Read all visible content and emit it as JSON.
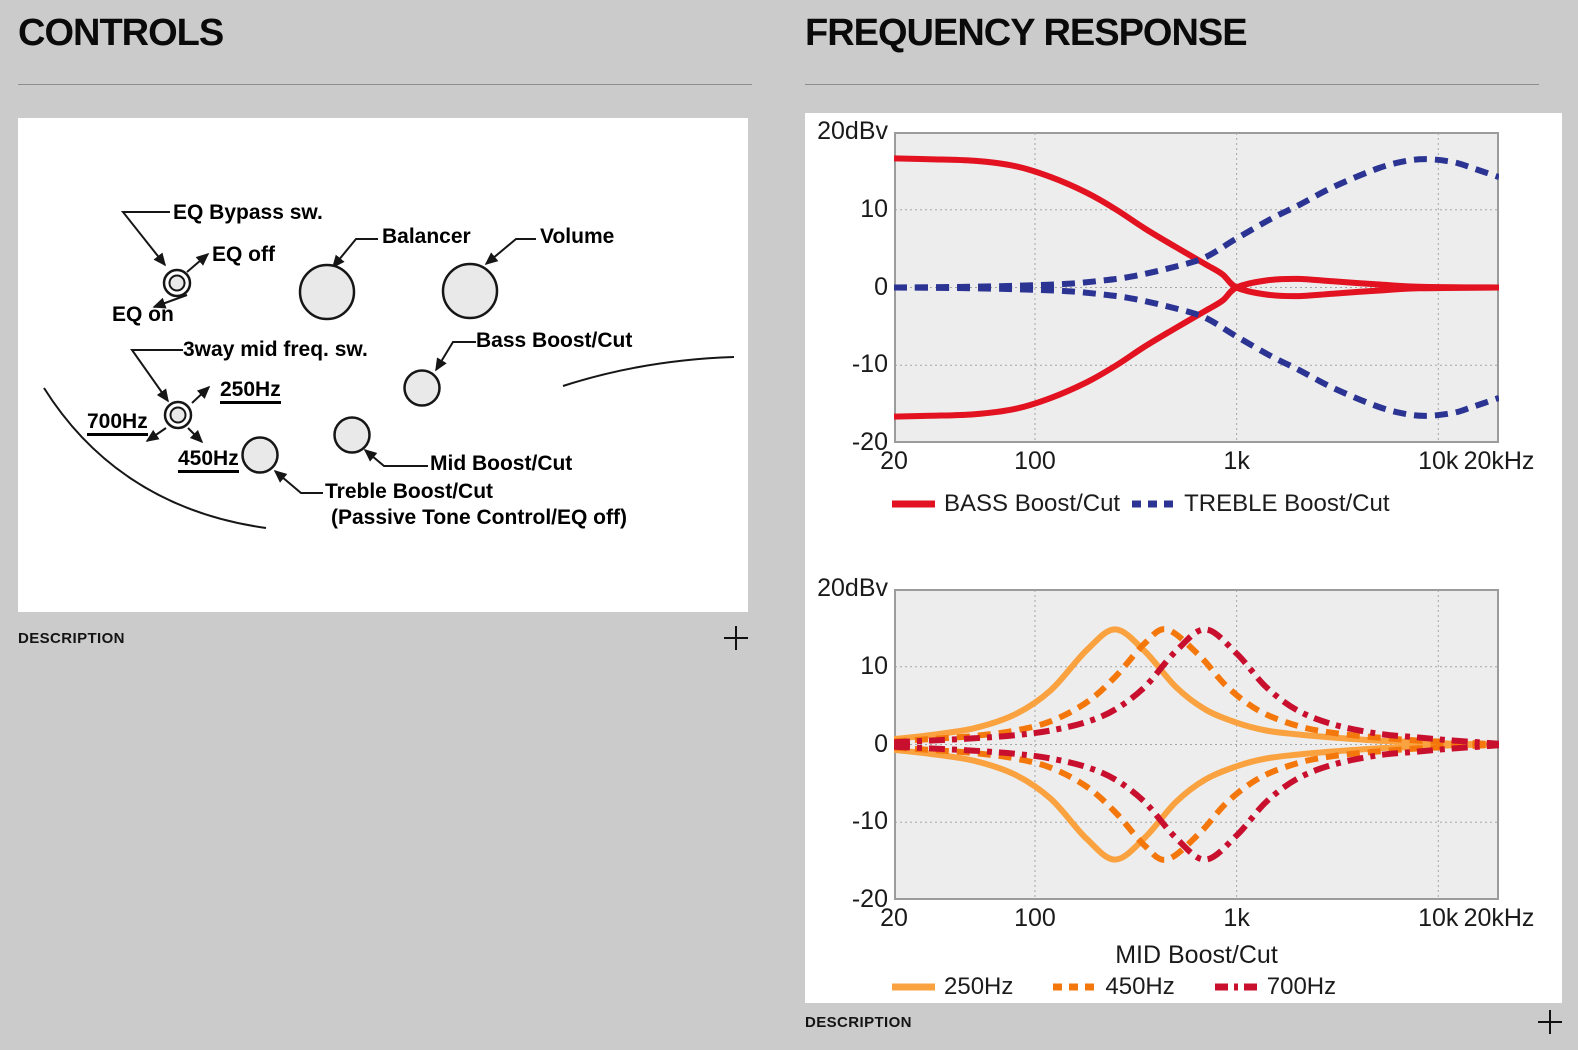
{
  "left": {
    "title": "CONTROLS",
    "description_label": "DESCRIPTION",
    "diagram": {
      "labels": {
        "eq_bypass": "EQ Bypass sw.",
        "eq_off": "EQ off",
        "eq_on": "EQ on",
        "balancer": "Balancer",
        "volume": "Volume",
        "mid_freq_switch": "3way mid freq. sw.",
        "freq_250": "250Hz",
        "freq_700": "700Hz",
        "freq_450": "450Hz",
        "bass": "Bass Boost/Cut",
        "mid": "Mid Boost/Cut",
        "treble": "Treble Boost/Cut",
        "treble_note": "(Passive Tone Control/EQ off)"
      }
    }
  },
  "right": {
    "title": "FREQUENCY RESPONSE",
    "description_label": "DESCRIPTION"
  },
  "theme": {
    "page_bg": "#cbcbcb",
    "panel_bg": "#ffffff",
    "plot_bg": "#ededed",
    "plot_border": "#9c9c9c",
    "grid": "#a6a6a6",
    "text": "#1a1a1a"
  },
  "chart_data": [
    {
      "type": "line",
      "title": "",
      "xlabel": "",
      "ylabel": "dBv",
      "x_scale": "log",
      "x_range": [
        20,
        20000
      ],
      "y_range": [
        -20,
        20
      ],
      "grid": true,
      "legend_position": "bottom",
      "x_gridlines": [
        100,
        1000,
        10000
      ],
      "y_gridlines": [
        10,
        0,
        -10
      ],
      "x_ticks": [
        {
          "f": 20,
          "label": "20"
        },
        {
          "f": 100,
          "label": "100"
        },
        {
          "f": 1000,
          "label": "1k"
        },
        {
          "f": 10000,
          "label": "10k"
        },
        {
          "f": 20000,
          "label": "20kHz"
        }
      ],
      "y_ticks": [
        {
          "v": 20,
          "label": "20dBv"
        },
        {
          "v": 10,
          "label": "10"
        },
        {
          "v": 0,
          "label": "0"
        },
        {
          "v": -10,
          "label": "-10"
        },
        {
          "v": -20,
          "label": "-20"
        }
      ],
      "series": [
        {
          "name": "BASS Boost/Cut",
          "color": "#e21220",
          "style": "solid",
          "mirrored": true,
          "points": [
            [
              20,
              16.6
            ],
            [
              30,
              16.5
            ],
            [
              50,
              16.3
            ],
            [
              80,
              15.6
            ],
            [
              120,
              14.2
            ],
            [
              180,
              12.2
            ],
            [
              250,
              10.1
            ],
            [
              350,
              7.6
            ],
            [
              500,
              5.2
            ],
            [
              700,
              3.0
            ],
            [
              850,
              1.7
            ],
            [
              1000,
              0
            ],
            [
              1400,
              -0.9
            ],
            [
              2000,
              -1.1
            ],
            [
              3000,
              -0.8
            ],
            [
              5000,
              -0.4
            ],
            [
              8000,
              -0.1
            ],
            [
              20000,
              0
            ]
          ]
        },
        {
          "name": "TREBLE Boost/Cut",
          "color": "#2b3493",
          "style": "dashed",
          "mirrored": true,
          "points": [
            [
              20,
              0
            ],
            [
              50,
              0.1
            ],
            [
              100,
              0.3
            ],
            [
              150,
              0.5
            ],
            [
              200,
              0.8
            ],
            [
              300,
              1.4
            ],
            [
              500,
              2.7
            ],
            [
              700,
              3.9
            ],
            [
              1000,
              6.3
            ],
            [
              1500,
              8.9
            ],
            [
              2000,
              10.5
            ],
            [
              3000,
              12.9
            ],
            [
              5000,
              15.3
            ],
            [
              7000,
              16.3
            ],
            [
              9000,
              16.5
            ],
            [
              12000,
              16.1
            ],
            [
              15000,
              15.3
            ],
            [
              20000,
              14.2
            ]
          ]
        }
      ]
    },
    {
      "type": "line",
      "title": "",
      "xlabel": "MID Boost/Cut",
      "ylabel": "dBv",
      "x_scale": "log",
      "x_range": [
        20,
        20000
      ],
      "y_range": [
        -20,
        20
      ],
      "grid": true,
      "legend_position": "bottom",
      "x_gridlines": [
        100,
        1000,
        10000
      ],
      "y_gridlines": [
        10,
        0,
        -10
      ],
      "x_ticks": [
        {
          "f": 20,
          "label": "20"
        },
        {
          "f": 100,
          "label": "100"
        },
        {
          "f": 1000,
          "label": "1k"
        },
        {
          "f": 10000,
          "label": "10k"
        },
        {
          "f": 20000,
          "label": "20kHz"
        }
      ],
      "y_ticks": [
        {
          "v": 20,
          "label": "20dBv"
        },
        {
          "v": 10,
          "label": "10"
        },
        {
          "v": 0,
          "label": "0"
        },
        {
          "v": -10,
          "label": "-10"
        },
        {
          "v": -20,
          "label": "-20"
        }
      ],
      "series": [
        {
          "name": "250Hz",
          "color": "#f9a23f",
          "style": "solid",
          "mirrored": true,
          "points": [
            [
              20,
              0.7
            ],
            [
              30,
              1.2
            ],
            [
              50,
              2.1
            ],
            [
              80,
              3.9
            ],
            [
              120,
              7.0
            ],
            [
              180,
              12.1
            ],
            [
              250,
              14.8
            ],
            [
              350,
              12.0
            ],
            [
              500,
              7.4
            ],
            [
              700,
              4.5
            ],
            [
              1000,
              2.8
            ],
            [
              1400,
              1.8
            ],
            [
              2000,
              1.3
            ],
            [
              3000,
              0.9
            ],
            [
              5000,
              0.5
            ],
            [
              8000,
              0.3
            ],
            [
              12000,
              0.1
            ],
            [
              20000,
              0
            ]
          ]
        },
        {
          "name": "450Hz",
          "color": "#f4770b",
          "style": "dashed",
          "mirrored": true,
          "points": [
            [
              20,
              0.4
            ],
            [
              30,
              0.7
            ],
            [
              50,
              1.1
            ],
            [
              80,
              1.8
            ],
            [
              120,
              3.0
            ],
            [
              180,
              5.4
            ],
            [
              250,
              8.7
            ],
            [
              350,
              13.0
            ],
            [
              450,
              14.8
            ],
            [
              650,
              11.5
            ],
            [
              900,
              7.4
            ],
            [
              1300,
              4.3
            ],
            [
              2000,
              2.4
            ],
            [
              3000,
              1.5
            ],
            [
              5000,
              0.9
            ],
            [
              8000,
              0.5
            ],
            [
              12000,
              0.3
            ],
            [
              20000,
              0
            ]
          ]
        },
        {
          "name": "700Hz",
          "color": "#c8102e",
          "style": "dashdot",
          "mirrored": true,
          "points": [
            [
              20,
              0.3
            ],
            [
              30,
              0.5
            ],
            [
              50,
              0.8
            ],
            [
              80,
              1.2
            ],
            [
              120,
              1.8
            ],
            [
              180,
              2.9
            ],
            [
              250,
              4.5
            ],
            [
              350,
              7.4
            ],
            [
              500,
              12.0
            ],
            [
              700,
              14.8
            ],
            [
              1000,
              11.7
            ],
            [
              1400,
              7.4
            ],
            [
              2000,
              4.4
            ],
            [
              3000,
              2.6
            ],
            [
              5000,
              1.4
            ],
            [
              8000,
              0.9
            ],
            [
              12000,
              0.5
            ],
            [
              20000,
              0.1
            ]
          ]
        }
      ]
    }
  ]
}
